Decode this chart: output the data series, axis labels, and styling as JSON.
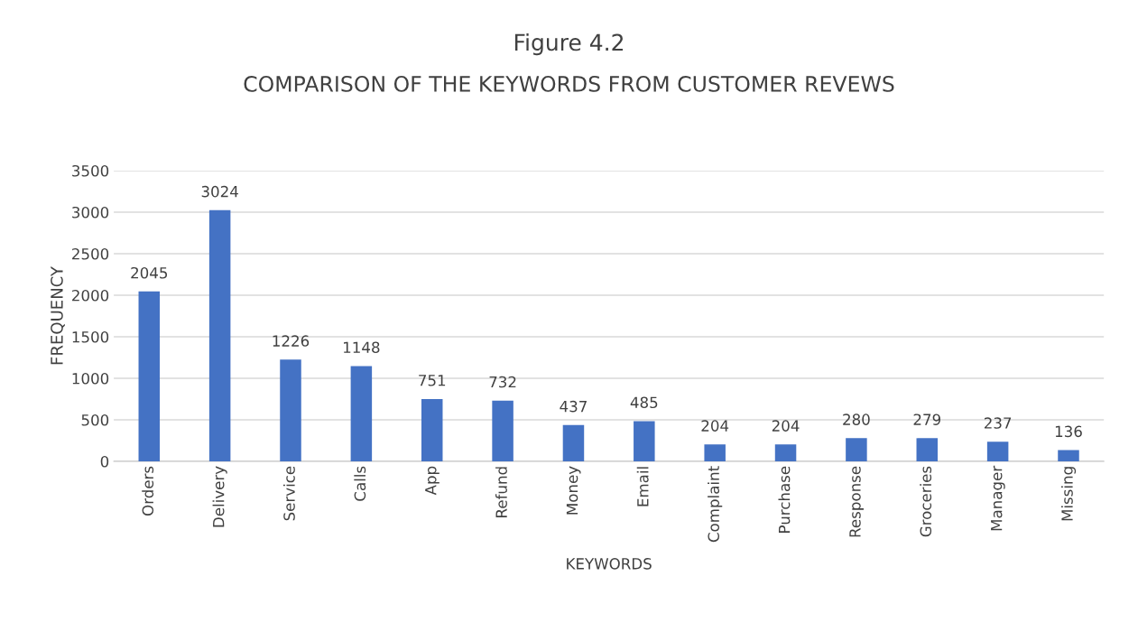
{
  "chart_data": {
    "type": "bar",
    "title": "Figure 4.2",
    "subtitle": "COMPARISON OF THE KEYWORDS FROM CUSTOMER REVEWS",
    "xlabel": "KEYWORDS",
    "ylabel": "FREQUENCY",
    "categories": [
      "Orders",
      "Delivery",
      "Service",
      "Calls",
      "App",
      "Refund",
      "Money",
      "Email",
      "Complaint",
      "Purchase",
      "Response",
      "Groceries",
      "Manager",
      "Missing"
    ],
    "values": [
      2045,
      3024,
      1226,
      1148,
      751,
      732,
      437,
      485,
      204,
      204,
      280,
      279,
      237,
      136
    ],
    "color": "#4472c4",
    "ylim": [
      0,
      3500
    ],
    "yticks": [
      0,
      500,
      1000,
      1500,
      2000,
      2500,
      3000,
      3500
    ],
    "grid": "y",
    "data_labels": true
  }
}
